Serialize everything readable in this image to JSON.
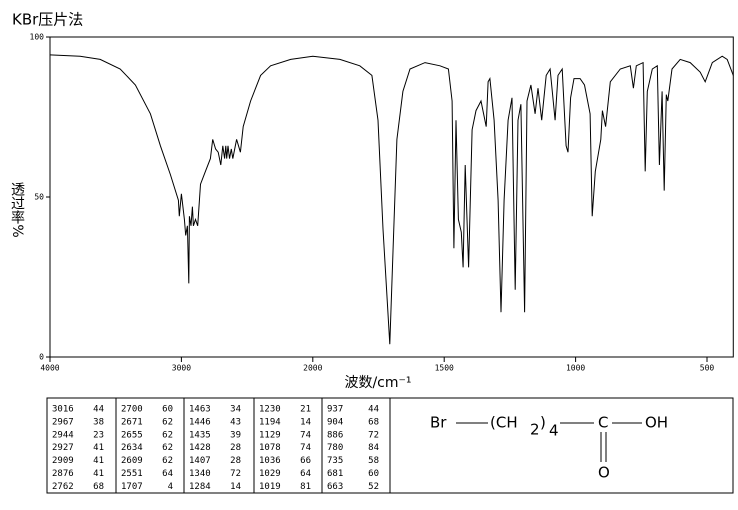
{
  "chart_data": {
    "type": "line",
    "title": "KBr压片法",
    "x_label": "波数/cm⁻¹",
    "y_label": "透过率%",
    "x": [
      4000,
      3771,
      3618,
      3466,
      3350,
      3236,
      3160,
      3084,
      3023,
      3016,
      3000,
      2977,
      2967,
      2954,
      2944,
      2939,
      2927,
      2916,
      2909,
      2893,
      2876,
      2855,
      2817,
      2779,
      2762,
      2740,
      2720,
      2700,
      2685,
      2671,
      2662,
      2655,
      2645,
      2634,
      2620,
      2609,
      2580,
      2551,
      2530,
      2473,
      2397,
      2321,
      2168,
      2000,
      1897,
      1821,
      1775,
      1752,
      1733,
      1707,
      1695,
      1680,
      1657,
      1630,
      1573,
      1516,
      1484,
      1470,
      1463,
      1455,
      1446,
      1435,
      1428,
      1420,
      1407,
      1394,
      1379,
      1360,
      1340,
      1333,
      1326,
      1310,
      1295,
      1284,
      1272,
      1257,
      1242,
      1230,
      1219,
      1208,
      1194,
      1185,
      1170,
      1154,
      1143,
      1129,
      1112,
      1097,
      1078,
      1067,
      1051,
      1036,
      1029,
      1019,
      1006,
      983,
      966,
      945,
      937,
      925,
      904,
      898,
      886,
      868,
      830,
      792,
      780,
      769,
      743,
      735,
      727,
      708,
      689,
      681,
      671,
      663,
      655,
      649,
      633,
      602,
      564,
      526,
      507,
      480,
      442,
      423,
      400
    ],
    "values": [
      94.4,
      94,
      93,
      90,
      85,
      76,
      66,
      57,
      49,
      44,
      51,
      43,
      38,
      41,
      23,
      44,
      41,
      47,
      41,
      43,
      41,
      54,
      58,
      62,
      68,
      65,
      64,
      60,
      66,
      62,
      66,
      62,
      66,
      62,
      65,
      62,
      68,
      64,
      72,
      80,
      88,
      91,
      93,
      94,
      93,
      91,
      88,
      74,
      40,
      4,
      33,
      68,
      83,
      90,
      92,
      91,
      90,
      80,
      34,
      74,
      43,
      39,
      28,
      60,
      28,
      71,
      77,
      80,
      72,
      86,
      87,
      74,
      49,
      14,
      49,
      74,
      81,
      21,
      74,
      79,
      14,
      80,
      85,
      76,
      84,
      74,
      88,
      90,
      74,
      88,
      90,
      66,
      64,
      81,
      87,
      87,
      85,
      76,
      44,
      58,
      68,
      77,
      72,
      86,
      90,
      91,
      84,
      91,
      92,
      58,
      83,
      90,
      91,
      60,
      83,
      52,
      82,
      80,
      90,
      93,
      92,
      89,
      86,
      92,
      94,
      93,
      88
    ],
    "color": "#000000",
    "xlim": [
      4000,
      400
    ],
    "xticks": [
      4000,
      3000,
      2000,
      1500,
      1000,
      500
    ],
    "ylim": [
      0,
      100
    ],
    "yticks": [
      0,
      50,
      100
    ],
    "grid": false
  },
  "peak_table": [
    [
      3016,
      44
    ],
    [
      2967,
      38
    ],
    [
      2944,
      23
    ],
    [
      2927,
      41
    ],
    [
      2909,
      41
    ],
    [
      2876,
      41
    ],
    [
      2762,
      68
    ],
    [
      2700,
      60
    ],
    [
      2671,
      62
    ],
    [
      2655,
      62
    ],
    [
      2634,
      62
    ],
    [
      2609,
      62
    ],
    [
      2551,
      64
    ],
    [
      1707,
      4
    ],
    [
      1463,
      34
    ],
    [
      1446,
      43
    ],
    [
      1435,
      39
    ],
    [
      1428,
      28
    ],
    [
      1407,
      28
    ],
    [
      1340,
      72
    ],
    [
      1284,
      14
    ],
    [
      1230,
      21
    ],
    [
      1194,
      14
    ],
    [
      1129,
      74
    ],
    [
      1078,
      74
    ],
    [
      1036,
      66
    ],
    [
      1029,
      64
    ],
    [
      1019,
      81
    ],
    [
      937,
      44
    ],
    [
      904,
      68
    ],
    [
      886,
      72
    ],
    [
      780,
      84
    ],
    [
      735,
      58
    ],
    [
      681,
      60
    ],
    [
      663,
      52
    ]
  ],
  "structure": {
    "br": "Br",
    "open": "(CH",
    "sub1": "2",
    "close": ")",
    "sub2": "4",
    "carbon": "C",
    "hydroxyl": "OH",
    "oxygen": "O"
  }
}
